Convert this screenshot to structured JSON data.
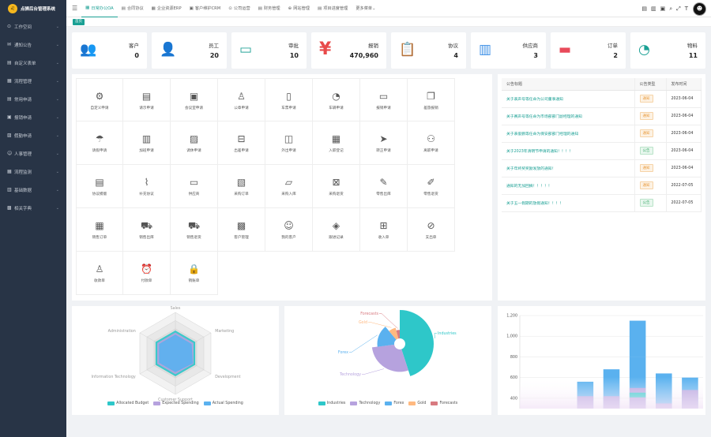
{
  "app": {
    "title": "点狮后台管理系统"
  },
  "sidebar": {
    "items": [
      {
        "label": "工作空间",
        "icon": "dashboard-icon"
      },
      {
        "label": "通知公告",
        "icon": "mail-icon"
      },
      {
        "label": "自定义表单",
        "icon": "form-icon"
      },
      {
        "label": "流程管理",
        "icon": "flow-icon"
      },
      {
        "label": "常用申请",
        "icon": "apply-icon"
      },
      {
        "label": "报销申请",
        "icon": "reimburse-icon"
      },
      {
        "label": "假勤申请",
        "icon": "leave-icon"
      },
      {
        "label": "人事管理",
        "icon": "people-icon"
      },
      {
        "label": "流程监测",
        "icon": "monitor-icon"
      },
      {
        "label": "基础数据",
        "icon": "database-icon"
      },
      {
        "label": "相关字典",
        "icon": "dictionary-icon"
      }
    ]
  },
  "topbar": {
    "tabs": [
      {
        "label": "日常办公OA",
        "active": true
      },
      {
        "label": "合同协议"
      },
      {
        "label": "企业资源ERP"
      },
      {
        "label": "客户维护CRM"
      },
      {
        "label": "公司运营"
      },
      {
        "label": "财务管理"
      },
      {
        "label": "网站管理"
      },
      {
        "label": "项目进度管理"
      },
      {
        "label": "更多菜单"
      }
    ]
  },
  "tabstrip": {
    "home": "首页"
  },
  "stats": [
    {
      "label": "客户",
      "value": "0",
      "icon": "customers-icon",
      "color": "#2ec7c9"
    },
    {
      "label": "员工",
      "value": "20",
      "icon": "employee-icon",
      "color": "#3a8ee6"
    },
    {
      "label": "审批",
      "value": "10",
      "icon": "approval-icon",
      "color": "#27a59a"
    },
    {
      "label": "报销",
      "value": "470,960",
      "icon": "yen-icon",
      "color": "#e84a4a"
    },
    {
      "label": "协议",
      "value": "4",
      "icon": "contract-icon",
      "color": "#2ec7c9"
    },
    {
      "label": "供应商",
      "value": "3",
      "icon": "supplier-icon",
      "color": "#3a8ee6"
    },
    {
      "label": "订单",
      "value": "2",
      "icon": "order-icon",
      "color": "#e84a5a"
    },
    {
      "label": "物料",
      "value": "11",
      "icon": "material-icon",
      "color": "#1aa094"
    }
  ],
  "apps": [
    {
      "label": "自定义申请",
      "glyph": "⚙",
      "icon": "settings-icon"
    },
    {
      "label": "请示申请",
      "glyph": "▤",
      "icon": "building-icon"
    },
    {
      "label": "会议室申请",
      "glyph": "▣",
      "icon": "meeting-room-icon"
    },
    {
      "label": "公章申请",
      "glyph": "♙",
      "icon": "seal-icon"
    },
    {
      "label": "车票申请",
      "glyph": "▯",
      "icon": "ticket-icon"
    },
    {
      "label": "车辆申请",
      "glyph": "◔",
      "icon": "vehicle-icon"
    },
    {
      "label": "报销申请",
      "glyph": "▭",
      "icon": "reimbursement-icon"
    },
    {
      "label": "差旅报销",
      "glyph": "❐",
      "icon": "travel-expense-icon"
    },
    {
      "label": "请假申请",
      "glyph": "☂",
      "icon": "leave-icon"
    },
    {
      "label": "加班申请",
      "glyph": "▥",
      "icon": "overtime-icon"
    },
    {
      "label": "调休申请",
      "glyph": "▨",
      "icon": "shift-icon"
    },
    {
      "label": "出差申请",
      "glyph": "⊟",
      "icon": "business-trip-icon"
    },
    {
      "label": "外出申请",
      "glyph": "◫",
      "icon": "outing-icon"
    },
    {
      "label": "入职登记",
      "glyph": "▦",
      "icon": "onboarding-icon"
    },
    {
      "label": "转正申请",
      "glyph": "➤",
      "icon": "regularization-icon"
    },
    {
      "label": "离职申请",
      "glyph": "⚇",
      "icon": "resignation-icon"
    },
    {
      "label": "协议模版",
      "glyph": "▤",
      "icon": "agreement-template-icon"
    },
    {
      "label": "补充协议",
      "glyph": "⌇",
      "icon": "attachment-icon"
    },
    {
      "label": "供应商",
      "glyph": "▭",
      "icon": "supplier-icon"
    },
    {
      "label": "采购订单",
      "glyph": "▧",
      "icon": "purchase-order-icon"
    },
    {
      "label": "采购入库",
      "glyph": "▱",
      "icon": "purchase-inbound-icon"
    },
    {
      "label": "采购退货",
      "glyph": "⊠",
      "icon": "purchase-return-icon"
    },
    {
      "label": "零售出库",
      "glyph": "✎",
      "icon": "retail-outbound-icon"
    },
    {
      "label": "零售退货",
      "glyph": "✐",
      "icon": "retail-return-icon"
    },
    {
      "label": "销售订单",
      "glyph": "▦",
      "icon": "sales-order-icon"
    },
    {
      "label": "销售出库",
      "glyph": "⛟",
      "icon": "sales-outbound-icon"
    },
    {
      "label": "销售退货",
      "glyph": "⛟",
      "icon": "sales-return-icon"
    },
    {
      "label": "客户管理",
      "glyph": "▩",
      "icon": "customer-management-icon"
    },
    {
      "label": "我的客户",
      "glyph": "☺",
      "icon": "my-customers-icon"
    },
    {
      "label": "跟进记录",
      "glyph": "◈",
      "icon": "follow-up-icon"
    },
    {
      "label": "收入单",
      "glyph": "⊞",
      "icon": "income-icon"
    },
    {
      "label": "支出单",
      "glyph": "⊘",
      "icon": "expense-icon"
    },
    {
      "label": "收款单",
      "glyph": "♙",
      "icon": "receipt-icon"
    },
    {
      "label": "付款单",
      "glyph": "⏰",
      "icon": "payment-icon"
    },
    {
      "label": "销账单",
      "glyph": "🔒",
      "icon": "writeoff-icon"
    }
  ],
  "notices": {
    "headers": [
      "公告标题",
      "公告类型",
      "发布时间"
    ],
    "rows": [
      {
        "title": "关于表声号等任命为公司董事通知",
        "type": "通知",
        "date": "2023-06-04"
      },
      {
        "title": "关于赛声号等任命为市场部部门副经理的通知",
        "type": "通知",
        "date": "2023-06-04"
      },
      {
        "title": "关于表俊鹏等任命为保安部部门经理的通知",
        "type": "通知",
        "date": "2023-06-04"
      },
      {
        "title": "关于2023年清明节申请的通知！！！！",
        "type": "公告",
        "date": "2023-06-04"
      },
      {
        "title": "关于年终奖奖励发放的通知！",
        "type": "通知",
        "date": "2023-06-04"
      },
      {
        "title": "通知的无加回摘！！！！！",
        "type": "通知",
        "date": "2022-07-05"
      },
      {
        "title": "关于五一假期的放假通知！！！！",
        "type": "公告",
        "date": "2022-07-05"
      }
    ]
  },
  "chart_data": [
    {
      "type": "radar",
      "indicators": [
        "Sales",
        "Marketing",
        "Development",
        "Customer Support",
        "Information Technology",
        "Administration"
      ],
      "series": [
        {
          "name": "Allocated Budget",
          "values": [
            0.55,
            0.55,
            0.55,
            0.55,
            0.55,
            0.55
          ],
          "color": "#2ec7c9"
        },
        {
          "name": "Expected Spending",
          "values": [
            0.5,
            0.5,
            0.5,
            0.5,
            0.5,
            0.5
          ],
          "color": "#b6a2de"
        },
        {
          "name": "Actual Spending",
          "values": [
            0.45,
            0.45,
            0.48,
            0.45,
            0.45,
            0.45
          ],
          "color": "#5ab1ef"
        }
      ]
    },
    {
      "type": "pie",
      "slices": [
        {
          "name": "Industries",
          "value": 45,
          "color": "#2ec7c9"
        },
        {
          "name": "Technology",
          "value": 28,
          "color": "#b6a2de"
        },
        {
          "name": "Forex",
          "value": 16,
          "color": "#5ab1ef"
        },
        {
          "name": "Gold",
          "value": 7,
          "color": "#ffb980"
        },
        {
          "name": "Forecasts",
          "value": 4,
          "color": "#d87a80"
        }
      ]
    },
    {
      "type": "bar",
      "yticks": [
        "1,200",
        "1,000",
        "800",
        "600",
        "400"
      ],
      "ylim": [
        300,
        1200
      ],
      "categories": [
        "",
        "",
        "",
        "",
        "",
        "",
        ""
      ],
      "series": [
        {
          "name": "A",
          "values": [
            0,
            0,
            0,
            0,
            0,
            0,
            0
          ],
          "color": "#b6a2de"
        },
        {
          "name": "B",
          "values": [
            0,
            0,
            0,
            0,
            0,
            0,
            0
          ],
          "color": "#5ab1ef"
        }
      ],
      "stacks": [
        {
          "b": 0,
          "p": 0,
          "c": 0,
          "t": 0
        },
        {
          "b": 0,
          "p": 0,
          "c": 0,
          "t": 0
        },
        {
          "b": 560,
          "p": 140,
          "c": 0,
          "t": 0
        },
        {
          "b": 680,
          "p": 260,
          "c": 0,
          "t": 0
        },
        {
          "b": 800,
          "p": 300,
          "c": 1150,
          "t": 0
        },
        {
          "b": 640,
          "p": 290,
          "c": 0,
          "t": 0
        },
        {
          "b": 600,
          "p": 120,
          "c": 0,
          "t": 0
        }
      ]
    }
  ]
}
